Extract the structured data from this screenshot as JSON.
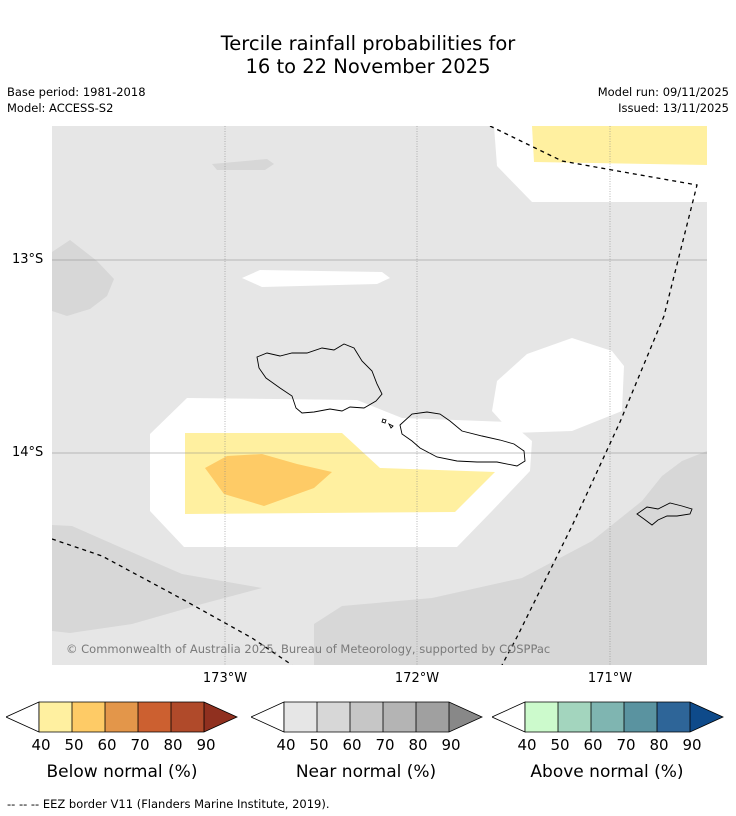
{
  "title": {
    "line1": "Tercile rainfall probabilities for",
    "line2": "16 to 22 November 2025"
  },
  "meta": {
    "base_period": "Base period: 1981-2018",
    "model": "Model: ACCESS-S2",
    "model_run": "Model run: 09/11/2025",
    "issued": "Issued: 13/11/2025"
  },
  "axes": {
    "lat_labels": [
      "13°S",
      "14°S"
    ],
    "lon_labels": [
      "173°W",
      "172°W",
      "171°W"
    ]
  },
  "credit": "© Commonwealth of Australia 2025, Bureau of Meteorology, supported by COSPPac",
  "colorbars": [
    {
      "title": "Below normal (%)",
      "ticks": [
        "40",
        "50",
        "60",
        "70",
        "80",
        "90"
      ],
      "colors": [
        "#fff0a0",
        "#fecb66",
        "#e3964a",
        "#cc6030",
        "#b04a2a",
        "#90301f"
      ]
    },
    {
      "title": "Near normal (%)",
      "ticks": [
        "40",
        "50",
        "60",
        "70",
        "80",
        "90"
      ],
      "colors": [
        "#e6e6e6",
        "#d7d7d7",
        "#c6c6c6",
        "#b4b4b4",
        "#a0a0a0",
        "#888888"
      ]
    },
    {
      "title": "Above normal (%)",
      "ticks": [
        "40",
        "50",
        "60",
        "70",
        "80",
        "90"
      ],
      "colors": [
        "#ccfacc",
        "#a3d5be",
        "#7fb5b1",
        "#5a93a0",
        "#2e6598",
        "#0e4a8a"
      ]
    }
  ],
  "footnote": "--  --  -- EEZ border V11 (Flanders Marine Institute, 2019).",
  "colors": {
    "near_normal_40": "#e6e6e6",
    "near_normal_50": "#d7d7d7",
    "below_normal_40": "#fff0a0",
    "below_normal_50": "#fecb66",
    "background": "#ffffff"
  }
}
